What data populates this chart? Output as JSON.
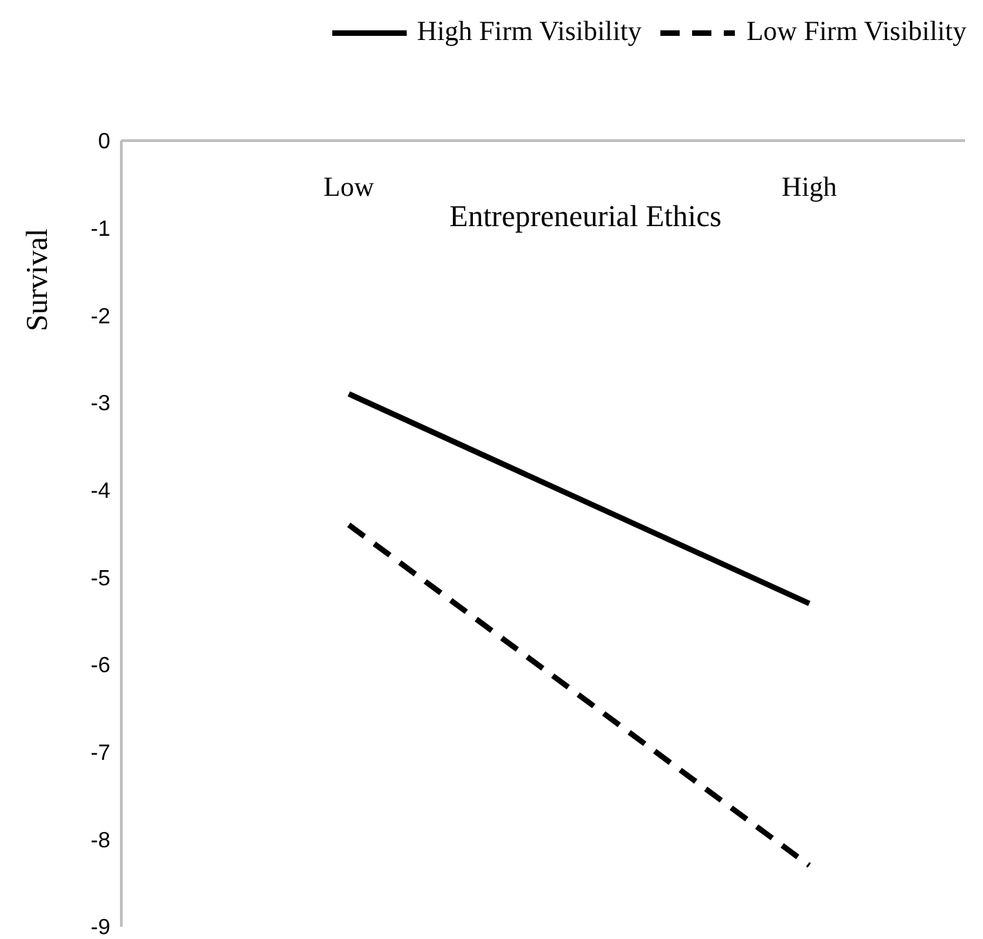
{
  "chart_data": {
    "type": "line",
    "xlabel": "Entrepreneurial Ethics",
    "ylabel": "Survival",
    "categories": [
      "Low",
      "High"
    ],
    "series": [
      {
        "name": "High Firm Visibility",
        "color": "#000000",
        "line_style": "solid",
        "values": [
          -2.9,
          -5.3
        ]
      },
      {
        "name": "Low Firm Visibility",
        "color": "#000000",
        "line_style": "dashed",
        "values": [
          -4.4,
          -8.3
        ]
      }
    ],
    "ylim": [
      -9,
      0
    ],
    "yticks": [
      0,
      -1,
      -2,
      -3,
      -4,
      -5,
      -6,
      -7,
      -8,
      -9
    ],
    "grid": false,
    "legend": "top right",
    "marker": "none"
  }
}
